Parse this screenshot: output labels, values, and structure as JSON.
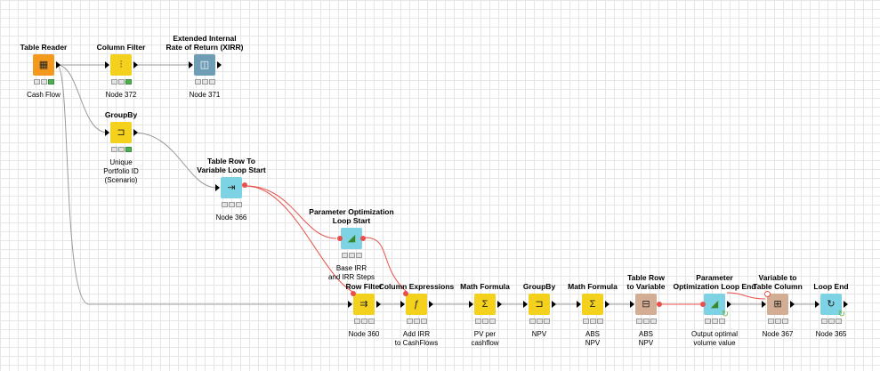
{
  "workflow": {
    "colors": {
      "reader": "#f39a1e",
      "manipulator": "#f4d11c",
      "loop": "#7dd3e3",
      "other": "#d3ad94",
      "xirr": "#6e9db5",
      "variable_edge": "#e8514b",
      "data_edge": "#9a9a9a",
      "status_on": "#4caf50"
    },
    "nodes": [
      {
        "id": "table-reader",
        "title": "Table Reader",
        "label": "Cash Flow",
        "type": "reader",
        "icon": "table-icon",
        "glyph": "▦",
        "status": 3
      },
      {
        "id": "column-filter",
        "title": "Column Filter",
        "label": "Node 372",
        "type": "manipulator",
        "icon": "column-filter-icon",
        "glyph": "⫶",
        "status": 3
      },
      {
        "id": "xirr",
        "title": "Extended Internal\nRate of Return (XIRR)",
        "label": "Node 371",
        "type": "xirr",
        "icon": "xirr-icon",
        "glyph": "◫",
        "status": 1
      },
      {
        "id": "groupby-1",
        "title": "GroupBy",
        "label": "Unique\nPortfolio ID\n(Scenario)",
        "type": "manipulator",
        "icon": "groupby-icon",
        "glyph": "⊐",
        "status": 3
      },
      {
        "id": "table-row-to-variable-loop-start",
        "title": "Table Row To\nVariable Loop Start",
        "label": "Node 366",
        "type": "loop",
        "icon": "loop-start-icon",
        "glyph": "⇥",
        "status": 1
      },
      {
        "id": "parameter-optimization-loop-start",
        "title": "Parameter Optimization\nLoop Start",
        "label": "Base IRR\nand IRR Steps",
        "type": "loop",
        "icon": "optimization-icon",
        "glyph": "◢",
        "status": 1
      },
      {
        "id": "row-filter",
        "title": "Row Filter",
        "label": "Node 360",
        "type": "manipulator",
        "icon": "row-filter-icon",
        "glyph": "⇉",
        "status": 1
      },
      {
        "id": "column-expressions",
        "title": "Column Expressions",
        "label": "Add IRR\nto CashFlows",
        "type": "manipulator",
        "icon": "expression-icon",
        "glyph": "ƒ",
        "status": 1
      },
      {
        "id": "math-formula-1",
        "title": "Math Formula",
        "label": "PV per\ncashflow",
        "type": "manipulator",
        "icon": "math-formula-icon",
        "glyph": "Σ",
        "status": 1
      },
      {
        "id": "groupby-2",
        "title": "GroupBy",
        "label": "NPV",
        "type": "manipulator",
        "icon": "groupby-icon",
        "glyph": "⊐",
        "status": 1
      },
      {
        "id": "math-formula-2",
        "title": "Math Formula",
        "label": "ABS\nNPV",
        "type": "manipulator",
        "icon": "math-formula-icon",
        "glyph": "Σ",
        "status": 1
      },
      {
        "id": "table-row-to-variable",
        "title": "Table Row\nto Variable",
        "label": "ABS\nNPV",
        "type": "other",
        "icon": "row-to-variable-icon",
        "glyph": "⊟",
        "status": 1
      },
      {
        "id": "parameter-optimization-loop-end",
        "title": "Parameter\nOptimization Loop End",
        "label": "Output optimal\nvolume value",
        "type": "loop",
        "icon": "optimization-end-icon",
        "glyph": "◢",
        "status": 1
      },
      {
        "id": "variable-to-table-column",
        "title": "Variable to\nTable Column",
        "label": "Node 367",
        "type": "other",
        "icon": "variable-to-column-icon",
        "glyph": "⊞",
        "status": 1
      },
      {
        "id": "loop-end",
        "title": "Loop End",
        "label": "Node 365",
        "type": "loop",
        "icon": "loop-end-icon",
        "glyph": "↻",
        "status": 1
      }
    ]
  }
}
